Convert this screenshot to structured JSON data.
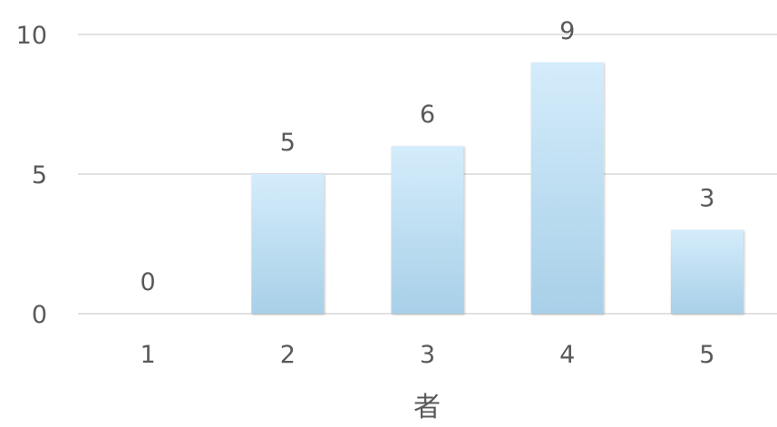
{
  "chart_data": {
    "type": "bar",
    "categories": [
      "1",
      "2",
      "3",
      "4",
      "5"
    ],
    "values": [
      0,
      5,
      6,
      9,
      3
    ],
    "xlabel": "者",
    "ylabel": "",
    "ylim": [
      0,
      10
    ],
    "yticks": [
      0,
      5,
      10
    ],
    "grid": true,
    "legend": "none",
    "data_labels": true,
    "colors": {
      "bar_top": "#d4ecfb",
      "bar_bottom": "#a8d0e8",
      "grid": "#d9d9d9",
      "text": "#595959"
    }
  }
}
